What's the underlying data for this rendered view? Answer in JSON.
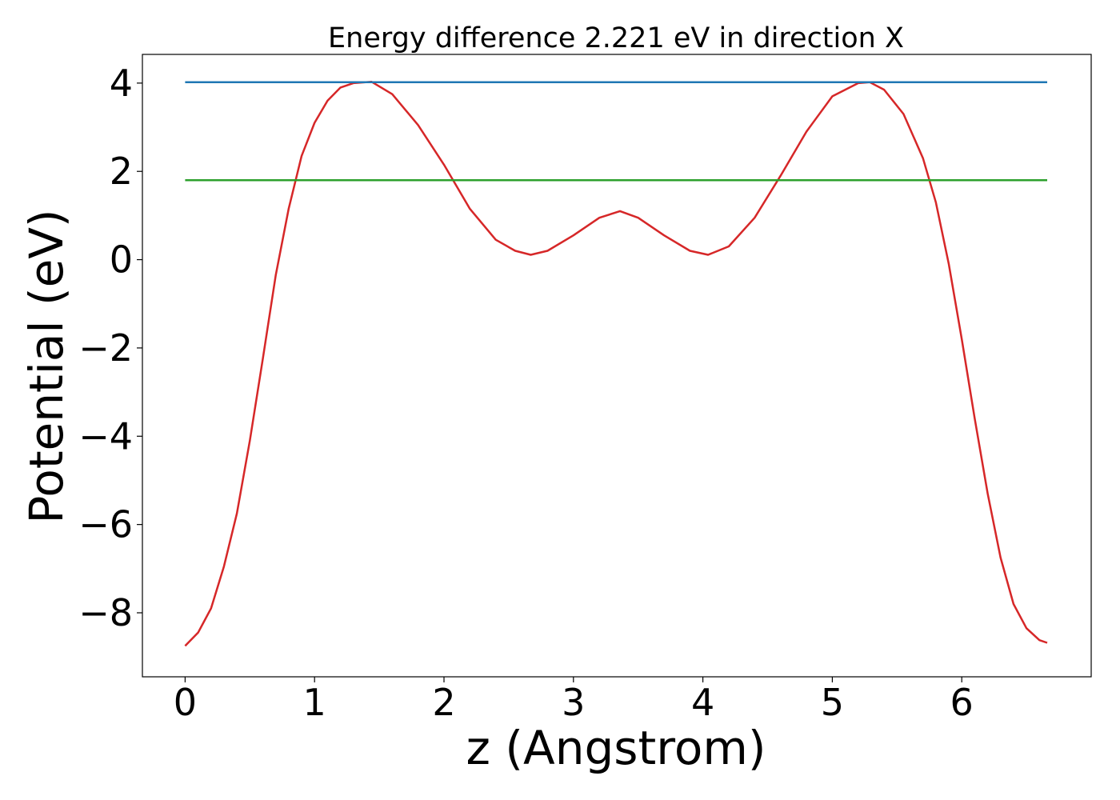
{
  "chart_data": {
    "type": "line",
    "title": "Energy difference 2.221 eV in direction X",
    "xlabel": "z (Angstrom)",
    "ylabel": "Potential (eV)",
    "xlim": [
      -0.33,
      7.0
    ],
    "ylim": [
      -9.45,
      4.65
    ],
    "xticks": [
      0,
      1,
      2,
      3,
      4,
      5,
      6
    ],
    "xtick_labels": [
      "0",
      "1",
      "2",
      "3",
      "4",
      "5",
      "6"
    ],
    "yticks": [
      -8,
      -6,
      -4,
      -2,
      0,
      2,
      4
    ],
    "ytick_labels": [
      "−8",
      "−6",
      "−4",
      "−2",
      "0",
      "2",
      "4"
    ],
    "grid": false,
    "series": [
      {
        "color": "#d62728",
        "x": [
          0.0,
          0.1,
          0.2,
          0.3,
          0.4,
          0.5,
          0.6,
          0.7,
          0.8,
          0.9,
          1.0,
          1.1,
          1.2,
          1.3,
          1.44,
          1.6,
          1.8,
          2.0,
          2.2,
          2.4,
          2.55,
          2.67,
          2.8,
          3.0,
          3.2,
          3.36,
          3.5,
          3.7,
          3.9,
          4.04,
          4.2,
          4.4,
          4.6,
          4.8,
          5.0,
          5.2,
          5.29,
          5.4,
          5.55,
          5.7,
          5.8,
          5.9,
          6.0,
          6.1,
          6.2,
          6.3,
          6.4,
          6.5,
          6.6,
          6.66
        ],
        "values": [
          -8.75,
          -8.45,
          -7.9,
          -6.95,
          -5.75,
          -4.1,
          -2.25,
          -0.35,
          1.15,
          2.35,
          3.1,
          3.6,
          3.9,
          4.0,
          4.03,
          3.75,
          3.05,
          2.15,
          1.15,
          0.45,
          0.2,
          0.11,
          0.2,
          0.55,
          0.95,
          1.1,
          0.95,
          0.55,
          0.2,
          0.11,
          0.3,
          0.95,
          1.9,
          2.9,
          3.7,
          4.0,
          4.02,
          3.85,
          3.3,
          2.3,
          1.3,
          -0.1,
          -1.8,
          -3.6,
          -5.3,
          -6.75,
          -7.8,
          -8.35,
          -8.62,
          -8.68
        ]
      },
      {
        "color": "#1f77b4",
        "x": [
          0.0,
          6.66
        ],
        "values": [
          4.02,
          4.02
        ]
      },
      {
        "color": "#2ca02c",
        "x": [
          0.0,
          6.66
        ],
        "values": [
          1.8,
          1.8
        ]
      }
    ]
  }
}
